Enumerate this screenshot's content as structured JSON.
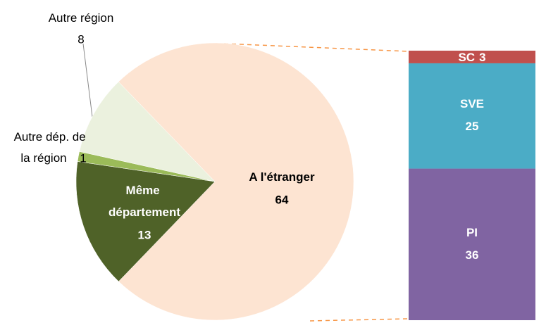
{
  "chart_data": [
    {
      "type": "pie",
      "categories": [
        "A l'étranger",
        "Même département",
        "Autre dép. de la région",
        "Autre région"
      ],
      "values": [
        64,
        13,
        1,
        8
      ],
      "colors": [
        "#fde4d2",
        "#4f6228",
        "#9bbb59",
        "#ebf1de"
      ]
    },
    {
      "type": "stacked-bar",
      "categories": [
        "PI",
        "SVE",
        "SC"
      ],
      "values": [
        36,
        25,
        3
      ],
      "colors": [
        "#8064a2",
        "#4bacc6",
        "#c0504d"
      ]
    }
  ]
}
